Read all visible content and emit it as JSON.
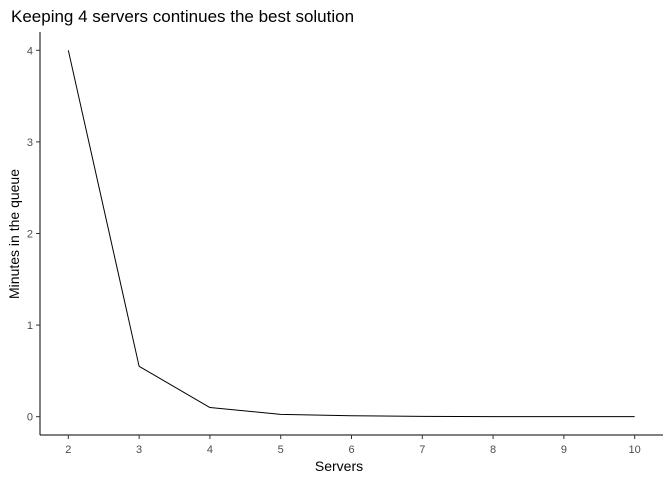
{
  "chart_data": {
    "type": "line",
    "title": "Keeping 4 servers continues the best solution",
    "xlabel": "Servers",
    "ylabel": "Minutes in the queue",
    "x": [
      2,
      3,
      4,
      5,
      6,
      7,
      8,
      9,
      10
    ],
    "series": [
      {
        "values": [
          4.0,
          0.55,
          0.1,
          0.025,
          0.01,
          0.003,
          0.001,
          0.0,
          0.0
        ],
        "color": "#000000"
      }
    ],
    "xlim": [
      1.6,
      10.4
    ],
    "ylim": [
      -0.2,
      4.2
    ],
    "xticks": [
      2,
      3,
      4,
      5,
      6,
      7,
      8,
      9,
      10
    ],
    "yticks": [
      0,
      1,
      2,
      3,
      4
    ],
    "grid": false,
    "legend": "none"
  }
}
